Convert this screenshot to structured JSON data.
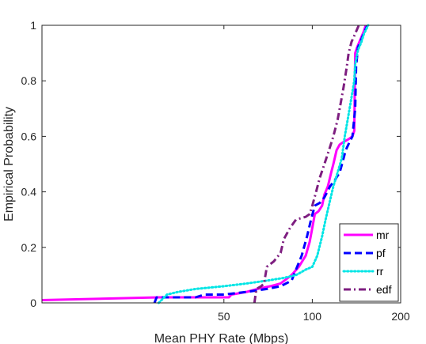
{
  "chart_data": {
    "type": "line",
    "title": "",
    "xlabel": "Mean PHY Rate (Mbps)",
    "ylabel": "Empirical Probability",
    "x_scale": "log",
    "xlim": [
      12,
      200
    ],
    "ylim": [
      0,
      1
    ],
    "x_ticks": [
      50,
      100,
      200
    ],
    "x_tick_labels": [
      "50",
      "100",
      "200"
    ],
    "y_ticks": [
      0,
      0.2,
      0.4,
      0.6,
      0.8,
      1
    ],
    "y_tick_labels": [
      "0",
      "0.2",
      "0.4",
      "0.6",
      "0.8",
      "1"
    ],
    "grid": false,
    "legend_position": "bottom-right",
    "series": [
      {
        "name": "mr",
        "color": "#ff00ff",
        "dash": "solid",
        "points": [
          [
            12,
            0.01
          ],
          [
            30,
            0.02
          ],
          [
            52,
            0.02
          ],
          [
            53,
            0.03
          ],
          [
            60,
            0.04
          ],
          [
            65,
            0.05
          ],
          [
            72,
            0.06
          ],
          [
            78,
            0.07
          ],
          [
            85,
            0.1
          ],
          [
            90,
            0.13
          ],
          [
            95,
            0.17
          ],
          [
            98,
            0.22
          ],
          [
            100,
            0.27
          ],
          [
            102,
            0.32
          ],
          [
            105,
            0.33
          ],
          [
            108,
            0.35
          ],
          [
            110,
            0.39
          ],
          [
            113,
            0.42
          ],
          [
            116,
            0.47
          ],
          [
            118,
            0.5
          ],
          [
            121,
            0.55
          ],
          [
            124,
            0.57
          ],
          [
            128,
            0.58
          ],
          [
            133,
            0.59
          ],
          [
            137,
            0.6
          ],
          [
            139,
            0.62
          ],
          [
            140,
            0.9
          ],
          [
            142,
            0.92
          ],
          [
            146,
            0.95
          ],
          [
            150,
            0.98
          ],
          [
            152,
            1.0
          ]
        ]
      },
      {
        "name": "pf",
        "color": "#0000ff",
        "dash": "dashed",
        "points": [
          [
            29,
            0.0
          ],
          [
            29.5,
            0.02
          ],
          [
            40,
            0.02
          ],
          [
            43,
            0.03
          ],
          [
            50,
            0.03
          ],
          [
            60,
            0.04
          ],
          [
            70,
            0.05
          ],
          [
            78,
            0.06
          ],
          [
            85,
            0.08
          ],
          [
            88,
            0.12
          ],
          [
            92,
            0.17
          ],
          [
            96,
            0.24
          ],
          [
            99,
            0.3
          ],
          [
            102,
            0.35
          ],
          [
            106,
            0.36
          ],
          [
            110,
            0.38
          ],
          [
            115,
            0.42
          ],
          [
            119,
            0.44
          ],
          [
            124,
            0.47
          ],
          [
            127,
            0.51
          ],
          [
            130,
            0.55
          ],
          [
            134,
            0.58
          ],
          [
            137,
            0.6
          ],
          [
            140,
            0.7
          ],
          [
            141,
            0.85
          ],
          [
            143,
            0.92
          ],
          [
            147,
            0.95
          ],
          [
            151,
            0.98
          ],
          [
            154,
            1.0
          ]
        ]
      },
      {
        "name": "rr",
        "color": "#00e5e5",
        "dash": "dotted",
        "points": [
          [
            30,
            0.0
          ],
          [
            32,
            0.03
          ],
          [
            35,
            0.04
          ],
          [
            40,
            0.05
          ],
          [
            50,
            0.06
          ],
          [
            60,
            0.07
          ],
          [
            70,
            0.08
          ],
          [
            80,
            0.09
          ],
          [
            88,
            0.1
          ],
          [
            95,
            0.12
          ],
          [
            100,
            0.13
          ],
          [
            104,
            0.17
          ],
          [
            108,
            0.24
          ],
          [
            111,
            0.3
          ],
          [
            115,
            0.37
          ],
          [
            118,
            0.42
          ],
          [
            122,
            0.47
          ],
          [
            126,
            0.52
          ],
          [
            129,
            0.6
          ],
          [
            132,
            0.66
          ],
          [
            135,
            0.72
          ],
          [
            137,
            0.76
          ],
          [
            139,
            0.8
          ],
          [
            140,
            0.86
          ],
          [
            143,
            0.91
          ],
          [
            147,
            0.94
          ],
          [
            150,
            0.97
          ],
          [
            155,
            1.0
          ]
        ]
      },
      {
        "name": "edf",
        "color": "#7e1e80",
        "dash": "dashdot",
        "points": [
          [
            63.5,
            0.0
          ],
          [
            64.5,
            0.05
          ],
          [
            67,
            0.06
          ],
          [
            68.5,
            0.07
          ],
          [
            70,
            0.13
          ],
          [
            74,
            0.15
          ],
          [
            78,
            0.18
          ],
          [
            80,
            0.23
          ],
          [
            84,
            0.27
          ],
          [
            88,
            0.3
          ],
          [
            95,
            0.31
          ],
          [
            98,
            0.32
          ],
          [
            100,
            0.35
          ],
          [
            103,
            0.4
          ],
          [
            106,
            0.45
          ],
          [
            110,
            0.5
          ],
          [
            114,
            0.55
          ],
          [
            118,
            0.6
          ],
          [
            122,
            0.66
          ],
          [
            125,
            0.72
          ],
          [
            128,
            0.78
          ],
          [
            131,
            0.85
          ],
          [
            133,
            0.9
          ],
          [
            136,
            0.94
          ],
          [
            140,
            0.97
          ],
          [
            144,
            1.0
          ]
        ]
      }
    ]
  }
}
